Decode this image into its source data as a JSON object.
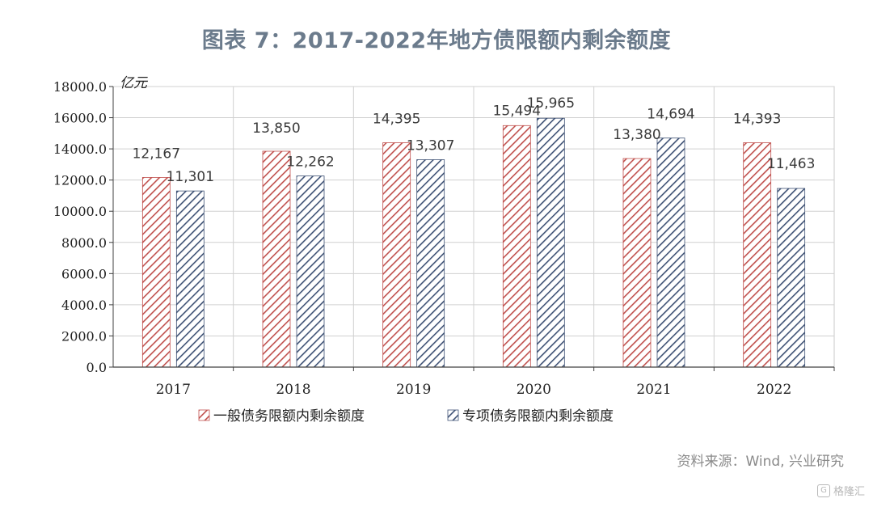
{
  "title": "图表 7：2017-2022年地方债限额内剩余额度",
  "source": "资料来源：Wind, 兴业研究",
  "watermark": {
    "icon": "gelonghui-logo-icon",
    "text": "格隆汇"
  },
  "chart_data": {
    "type": "bar",
    "unit_label": "亿元",
    "categories": [
      "2017",
      "2018",
      "2019",
      "2020",
      "2021",
      "2022"
    ],
    "series": [
      {
        "name": "一般债务限额内剩余额度",
        "values": [
          12167,
          13850,
          14395,
          15494,
          13380,
          14393
        ],
        "labels": [
          "12,167",
          "13,850",
          "14,395",
          "15,494",
          "13,380",
          "14,393"
        ],
        "color": "#c0504d"
      },
      {
        "name": "专项债务限额内剩余额度",
        "values": [
          11301,
          12262,
          13307,
          15965,
          14694,
          11463
        ],
        "labels": [
          "11,301",
          "12,262",
          "13,307",
          "15,965",
          "14,694",
          "11,463"
        ],
        "color": "#3f5275"
      }
    ],
    "ylim": [
      0,
      18000
    ],
    "yticks": [
      "0.0",
      "2000.0",
      "4000.0",
      "6000.0",
      "8000.0",
      "10000.0",
      "12000.0",
      "14000.0",
      "16000.0",
      "18000.0"
    ],
    "grid": true,
    "legend_position": "bottom"
  }
}
